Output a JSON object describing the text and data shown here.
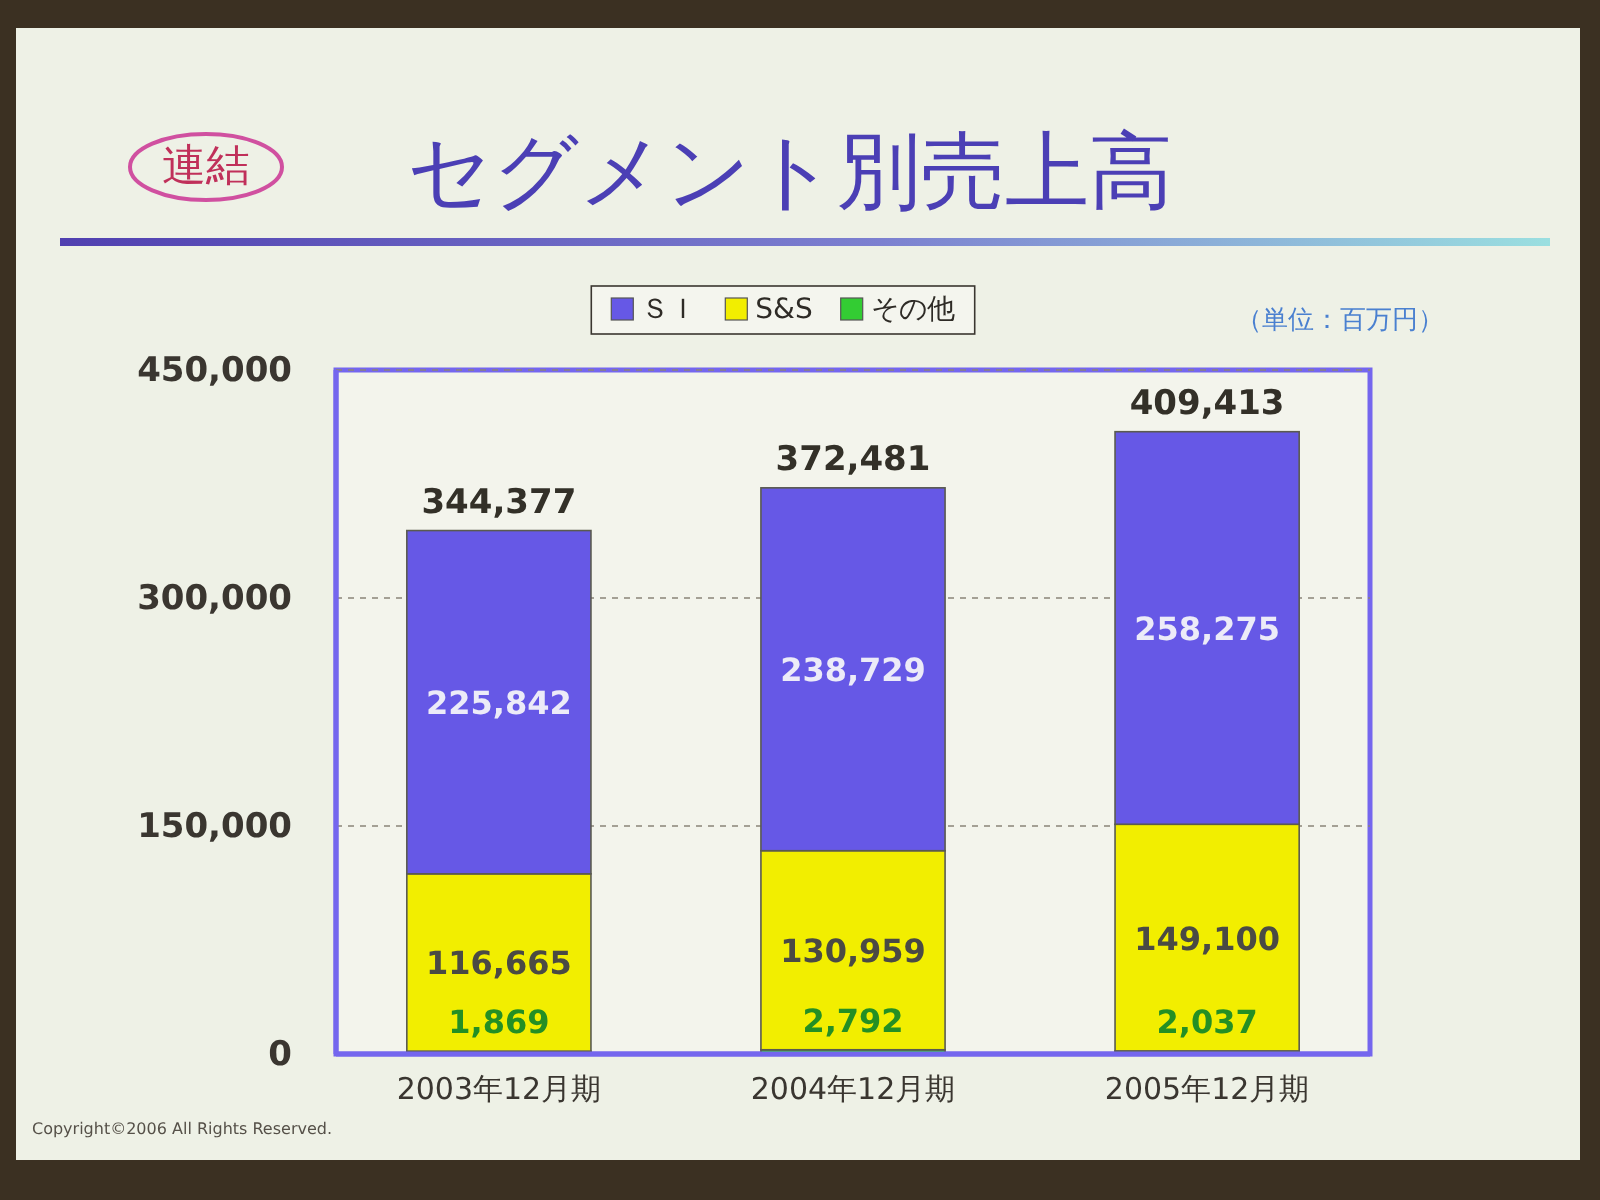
{
  "chart_data": {
    "type": "bar",
    "title": "セグメント別売上高",
    "subtitle": "連結",
    "categories": [
      "2003年12月期",
      "2004年12月期",
      "2005年12月期"
    ],
    "series": [
      {
        "name": "その他",
        "color": "#33cc33",
        "values": [
          1869,
          2792,
          2037
        ],
        "value_labels": [
          "1,869",
          "2,792",
          "2,037"
        ]
      },
      {
        "name": "S&S",
        "color": "#f2ee00",
        "values": [
          116665,
          130959,
          149100
        ],
        "value_labels": [
          "116,665",
          "130,959",
          "149,100"
        ]
      },
      {
        "name": "ＳＩ",
        "color": "#6658e6",
        "values": [
          225842,
          238729,
          258275
        ],
        "value_labels": [
          "225,842",
          "238,729",
          "258,275"
        ]
      }
    ],
    "stacked": true,
    "totals": [
      "344,377",
      "372,481",
      "409,413"
    ],
    "ylim": [
      0,
      450000
    ],
    "yticks": [
      0,
      {
        "value": 150000,
        "label": "150,000"
      },
      {
        "value": 300000,
        "label": "300,000"
      },
      {
        "value": 450000,
        "label": "450,000"
      }
    ],
    "grid": "y",
    "legend": "top",
    "annotations": [
      "（単位：百万円）",
      "Copyright©2006 All Rights Reserved."
    ]
  }
}
